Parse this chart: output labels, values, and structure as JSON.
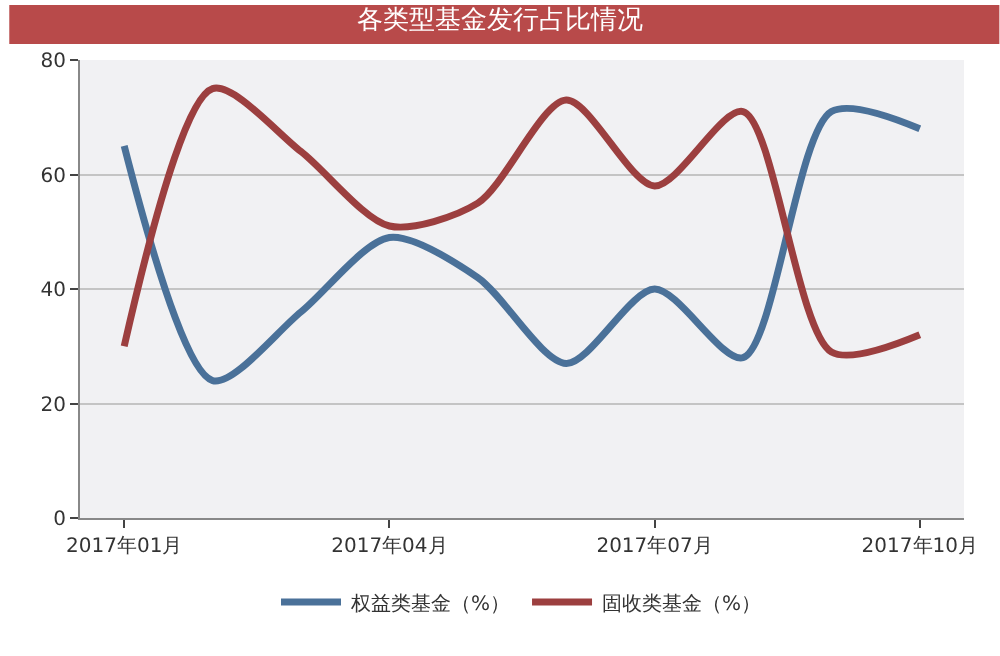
{
  "chart_data": {
    "type": "line",
    "title": "各类型基金发行占比情况",
    "categories": [
      "2017年01月",
      null,
      null,
      "2017年04月",
      null,
      null,
      "2017年07月",
      null,
      null,
      "2017年10月"
    ],
    "series": [
      {
        "name": "权益类基金（%）",
        "color": "#4a7199",
        "values": [
          65,
          24,
          36,
          49,
          42,
          27,
          40,
          28,
          71,
          68
        ]
      },
      {
        "name": "固收类基金（%）",
        "color": "#9c3f3f",
        "values": [
          30,
          75,
          64,
          51,
          55,
          73,
          58,
          71,
          29,
          32
        ]
      }
    ],
    "ylim": [
      0,
      80
    ],
    "yticks": [
      0,
      20,
      40,
      60,
      80
    ],
    "grid": "y",
    "legend": "bottom",
    "marker": "none",
    "line_style": "solid"
  }
}
